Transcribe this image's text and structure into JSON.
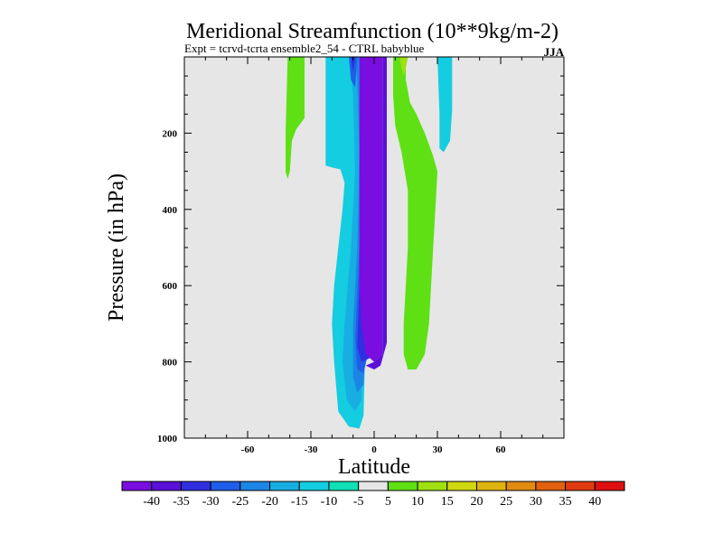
{
  "chart_data": {
    "type": "contour",
    "title": "Meridional Streamfunction (10**9kg/m-2)",
    "subtitle": "Expt = tcrvd-tcrta  ensemble2_54 - CTRL babyblue",
    "season": "JJA",
    "xlabel": "Latitude",
    "ylabel": "Pressure (in hPa)",
    "xlim": [
      -90,
      90
    ],
    "ylim": [
      1000,
      0
    ],
    "xticks": [
      -60,
      -30,
      0,
      30,
      60
    ],
    "xtick_labels": [
      "-60",
      "-30",
      "0",
      "30",
      "60"
    ],
    "yticks": [
      200,
      400,
      600,
      800,
      1000
    ],
    "ytick_labels": [
      "200",
      "400",
      "600",
      "800",
      "1000"
    ],
    "background_color": "#e6e6e6",
    "colorbar": {
      "labels": [
        "-40",
        "-35",
        "-30",
        "-25",
        "-20",
        "-15",
        "-10",
        "-5",
        "5",
        "10",
        "15",
        "20",
        "25",
        "30",
        "35",
        "40"
      ],
      "colors": [
        "#7a0de0",
        "#5a10d8",
        "#2f2ee0",
        "#1f5ee8",
        "#1c86e6",
        "#17aee2",
        "#14cde0",
        "#10e0b6",
        "#e6e6e6",
        "#5ee014",
        "#9ee010",
        "#d0d810",
        "#e0b410",
        "#e08a10",
        "#e06010",
        "#e03a10",
        "#e01010"
      ]
    },
    "regions": [
      {
        "name": "sh-mid-positive",
        "level": "5 to 10",
        "color": "#5ee014",
        "points": [
          [
            -40,
            0
          ],
          [
            -33,
            0
          ],
          [
            -33,
            160
          ],
          [
            -37,
            190
          ],
          [
            -39,
            220
          ],
          [
            -40,
            300
          ],
          [
            -41,
            320
          ],
          [
            -42,
            300
          ],
          [
            -42,
            200
          ],
          [
            -41,
            0
          ]
        ]
      },
      {
        "name": "sh-subtropical-negative",
        "level": "-10 to -5",
        "color": "#14cde0",
        "points": [
          [
            -18,
            0
          ],
          [
            -6,
            0
          ],
          [
            -6,
            520
          ],
          [
            -4,
            700
          ],
          [
            -5,
            940
          ],
          [
            -7,
            975
          ],
          [
            -12,
            970
          ],
          [
            -17,
            930
          ],
          [
            -19,
            800
          ],
          [
            -20,
            700
          ],
          [
            -19,
            600
          ],
          [
            -17,
            500
          ],
          [
            -15,
            400
          ],
          [
            -14,
            330
          ],
          [
            -16,
            295
          ],
          [
            -20,
            290
          ],
          [
            -23,
            285
          ],
          [
            -23,
            0
          ]
        ]
      },
      {
        "name": "sh-subtropical-negative-2",
        "level": "-15 to -10",
        "color": "#17aee2",
        "points": [
          [
            -12,
            0
          ],
          [
            -5,
            0
          ],
          [
            -5,
            700
          ],
          [
            -6,
            900
          ],
          [
            -9,
            930
          ],
          [
            -13,
            900
          ],
          [
            -15,
            800
          ],
          [
            -14,
            700
          ],
          [
            -11,
            500
          ],
          [
            -9,
            300
          ],
          [
            -10,
            100
          ]
        ]
      },
      {
        "name": "sh-subtropical-negative-3",
        "level": "-20 to -15",
        "color": "#1c86e6",
        "points": [
          [
            -9,
            0
          ],
          [
            -4,
            0
          ],
          [
            -4,
            750
          ],
          [
            -5,
            860
          ],
          [
            -8,
            880
          ],
          [
            -10,
            840
          ],
          [
            -10,
            700
          ],
          [
            -8,
            500
          ],
          [
            -7,
            250
          ],
          [
            -8,
            60
          ]
        ]
      },
      {
        "name": "sh-subtropical-negative-4",
        "level": "-25 to -20",
        "color": "#1f5ee8",
        "points": [
          [
            -6,
            0
          ],
          [
            -3,
            0
          ],
          [
            -3,
            780
          ],
          [
            -5,
            830
          ],
          [
            -8,
            820
          ],
          [
            -9,
            740
          ],
          [
            -7,
            500
          ],
          [
            -6,
            200
          ]
        ]
      },
      {
        "name": "sh-subtropical-negative-5",
        "level": "-30 to -25",
        "color": "#2f2ee0",
        "points": [
          [
            -5,
            0
          ],
          [
            -2,
            0
          ],
          [
            -2,
            790
          ],
          [
            -6,
            800
          ],
          [
            -8,
            760
          ],
          [
            -7,
            600
          ],
          [
            -5,
            300
          ]
        ]
      },
      {
        "name": "sh-upper-negative-core",
        "level": "-25 to -20",
        "color": "#1f5ee8",
        "points": [
          [
            -12,
            0
          ],
          [
            -8,
            0
          ],
          [
            -9,
            80
          ],
          [
            -11,
            60
          ]
        ]
      },
      {
        "name": "sh-upper-negative-core-2",
        "level": "-30 to -25",
        "color": "#2f2ee0",
        "points": [
          [
            -11,
            0
          ],
          [
            -9,
            0
          ],
          [
            -10,
            40
          ]
        ]
      },
      {
        "name": "equatorial-core",
        "level": "-40 to -35",
        "color": "#7a0de0",
        "points": [
          [
            -7,
            0
          ],
          [
            4,
            0
          ],
          [
            4,
            780
          ],
          [
            0,
            800
          ],
          [
            -4,
            780
          ],
          [
            -6,
            700
          ],
          [
            -7,
            600
          ],
          [
            -7,
            200
          ]
        ]
      },
      {
        "name": "equatorial-negative-edge",
        "level": "-35 to -30",
        "color": "#5a10d8",
        "points": [
          [
            4,
            0
          ],
          [
            6,
            0
          ],
          [
            6,
            750
          ],
          [
            3,
            810
          ],
          [
            0,
            820
          ],
          [
            -4,
            810
          ],
          [
            0,
            800
          ],
          [
            4,
            780
          ]
        ]
      },
      {
        "name": "nh-positive-band",
        "level": "5 to 10",
        "color": "#5ee014",
        "points": [
          [
            9,
            0
          ],
          [
            15,
            0
          ],
          [
            15,
            60
          ],
          [
            17,
            120
          ],
          [
            20,
            150
          ],
          [
            24,
            200
          ],
          [
            28,
            260
          ],
          [
            30,
            300
          ],
          [
            29,
            400
          ],
          [
            28,
            500
          ],
          [
            27,
            600
          ],
          [
            26,
            700
          ],
          [
            24,
            780
          ],
          [
            20,
            820
          ],
          [
            16,
            820
          ],
          [
            14,
            780
          ],
          [
            14,
            700
          ],
          [
            15,
            600
          ],
          [
            16,
            500
          ],
          [
            16,
            350
          ],
          [
            13,
            250
          ],
          [
            10,
            180
          ],
          [
            9,
            100
          ]
        ]
      },
      {
        "name": "nh-positive-upper",
        "level": "10 to 15",
        "color": "#9ee010",
        "points": [
          [
            12,
            0
          ],
          [
            16,
            0
          ],
          [
            15,
            30
          ],
          [
            14,
            50
          ],
          [
            13,
            30
          ]
        ]
      },
      {
        "name": "nh-upper-negative",
        "level": "-10 to -5",
        "color": "#14cde0",
        "points": [
          [
            30,
            0
          ],
          [
            37,
            0
          ],
          [
            37,
            140
          ],
          [
            36,
            220
          ],
          [
            33,
            250
          ],
          [
            31,
            240
          ],
          [
            31,
            150
          ]
        ]
      }
    ]
  }
}
